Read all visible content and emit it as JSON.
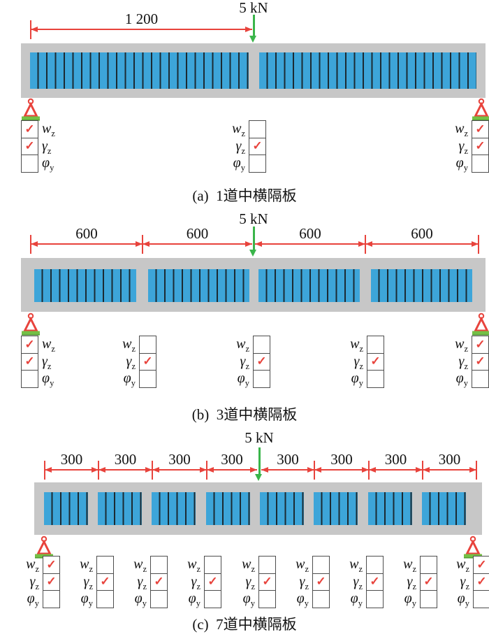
{
  "check_glyph": "✓",
  "row_labels": [
    {
      "main": "w",
      "sub": "z"
    },
    {
      "main": "γ",
      "sub": "z"
    },
    {
      "main": "φ",
      "sub": "y"
    }
  ],
  "colors": {
    "dimension_red": "#e8433c",
    "load_arrow_green": "#3ab54a",
    "support_base_green": "#74c046",
    "girder_blue": "#3da5d9",
    "deck_gray": "#c7c7c7",
    "rib_dark": "#1c2b33",
    "box_border": "#4d4d4d",
    "text_black": "#111111"
  },
  "panels": [
    {
      "id": "a",
      "load_label": "5 kN",
      "dim_labels": [
        "1 200"
      ],
      "caption": "(a)  1道中横隔板",
      "diaphragm_count": 1,
      "tables": [
        {
          "box_side": "left",
          "checks": [
            true,
            true,
            false
          ]
        },
        {
          "box_side": "right",
          "checks": [
            false,
            true,
            false
          ]
        },
        {
          "box_side": "right",
          "checks": [
            true,
            true,
            false
          ]
        }
      ]
    },
    {
      "id": "b",
      "load_label": "5 kN",
      "dim_labels": [
        "600",
        "600",
        "600",
        "600"
      ],
      "caption": "(b)  3道中横隔板",
      "diaphragm_count": 3,
      "tables": [
        {
          "box_side": "left",
          "checks": [
            true,
            true,
            false
          ]
        },
        {
          "box_side": "right",
          "checks": [
            false,
            true,
            false
          ]
        },
        {
          "box_side": "right",
          "checks": [
            false,
            true,
            false
          ]
        },
        {
          "box_side": "right",
          "checks": [
            false,
            true,
            false
          ]
        },
        {
          "box_side": "right",
          "checks": [
            true,
            true,
            false
          ]
        }
      ]
    },
    {
      "id": "c",
      "load_label": "5 kN",
      "dim_labels": [
        "300",
        "300",
        "300",
        "300",
        "300",
        "300",
        "300",
        "300"
      ],
      "caption": "(c)  7道中横隔板",
      "diaphragm_count": 7,
      "tables": [
        {
          "box_side": "right",
          "checks": [
            true,
            true,
            false
          ]
        },
        {
          "box_side": "right",
          "checks": [
            false,
            true,
            false
          ]
        },
        {
          "box_side": "right",
          "checks": [
            false,
            true,
            false
          ]
        },
        {
          "box_side": "right",
          "checks": [
            false,
            true,
            false
          ]
        },
        {
          "box_side": "right",
          "checks": [
            false,
            true,
            false
          ]
        },
        {
          "box_side": "right",
          "checks": [
            false,
            true,
            false
          ]
        },
        {
          "box_side": "right",
          "checks": [
            false,
            true,
            false
          ]
        },
        {
          "box_side": "right",
          "checks": [
            false,
            true,
            false
          ]
        },
        {
          "box_side": "right",
          "checks": [
            true,
            true,
            false
          ]
        }
      ]
    }
  ]
}
